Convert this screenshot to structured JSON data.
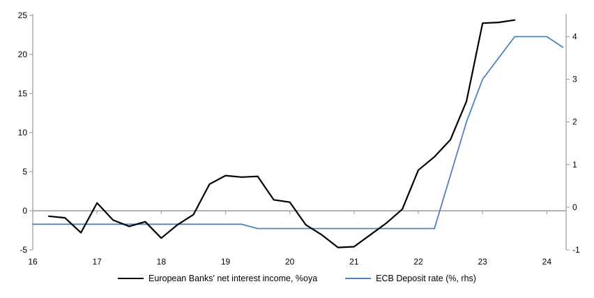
{
  "chart_data": {
    "type": "line",
    "title": "",
    "x_axis": {
      "ticks": [
        16,
        17,
        18,
        19,
        20,
        21,
        22,
        23,
        24
      ],
      "range": [
        16,
        24.3
      ]
    },
    "left_axis": {
      "label": "%oya",
      "ticks": [
        25,
        20,
        15,
        10,
        5,
        0,
        -5
      ],
      "range": [
        -5,
        25
      ]
    },
    "right_axis": {
      "label": "%",
      "ticks": [
        4,
        3,
        2,
        1,
        0,
        -1
      ],
      "range": [
        -1,
        4.5
      ]
    },
    "zero_gridline": true,
    "grid": false,
    "legend_position": "bottom",
    "series": [
      {
        "id": "european-banks-nii",
        "name": "European Banks' net interest income, %oya",
        "axis": "left",
        "color": "#000000",
        "x": [
          16.25,
          16.5,
          16.75,
          17.0,
          17.25,
          17.5,
          17.75,
          18.0,
          18.25,
          18.5,
          18.75,
          19.0,
          19.25,
          19.5,
          19.75,
          20.0,
          20.25,
          20.5,
          20.75,
          21.0,
          21.25,
          21.5,
          21.75,
          22.0,
          22.25,
          22.5,
          22.75,
          23.0,
          23.25,
          23.5
        ],
        "values": [
          -0.7,
          -0.9,
          -2.8,
          1.0,
          -1.2,
          -2.0,
          -1.4,
          -3.5,
          -1.8,
          -0.5,
          3.4,
          4.5,
          4.3,
          4.4,
          1.4,
          1.1,
          -1.8,
          -3.1,
          -4.7,
          -4.6,
          -3.1,
          -1.6,
          0.2,
          5.2,
          6.9,
          9.1,
          14.0,
          24.0,
          24.1,
          24.4
        ]
      },
      {
        "id": "ecb-deposit-rate",
        "name": "ECB Deposit rate (%, rhs)",
        "axis": "right",
        "color": "#4F81BD",
        "x": [
          16.0,
          16.25,
          16.5,
          16.75,
          17.0,
          17.25,
          17.5,
          17.75,
          18.0,
          18.25,
          18.5,
          18.75,
          19.0,
          19.25,
          19.5,
          19.75,
          20.0,
          20.25,
          20.5,
          20.75,
          21.0,
          21.25,
          21.5,
          21.75,
          22.0,
          22.25,
          22.5,
          22.75,
          23.0,
          23.25,
          23.5,
          23.75,
          24.0,
          24.25
        ],
        "values": [
          -0.4,
          -0.4,
          -0.4,
          -0.4,
          -0.4,
          -0.4,
          -0.4,
          -0.4,
          -0.4,
          -0.4,
          -0.4,
          -0.4,
          -0.4,
          -0.4,
          -0.5,
          -0.5,
          -0.5,
          -0.5,
          -0.5,
          -0.5,
          -0.5,
          -0.5,
          -0.5,
          -0.5,
          -0.5,
          -0.5,
          0.75,
          2.0,
          3.0,
          3.5,
          4.0,
          4.0,
          4.0,
          3.75
        ]
      }
    ],
    "colors": {
      "axis": "#A6A6A6",
      "zero_line": "#A6A6A6",
      "tick_text": "#000000",
      "background": "#FFFFFF"
    }
  }
}
